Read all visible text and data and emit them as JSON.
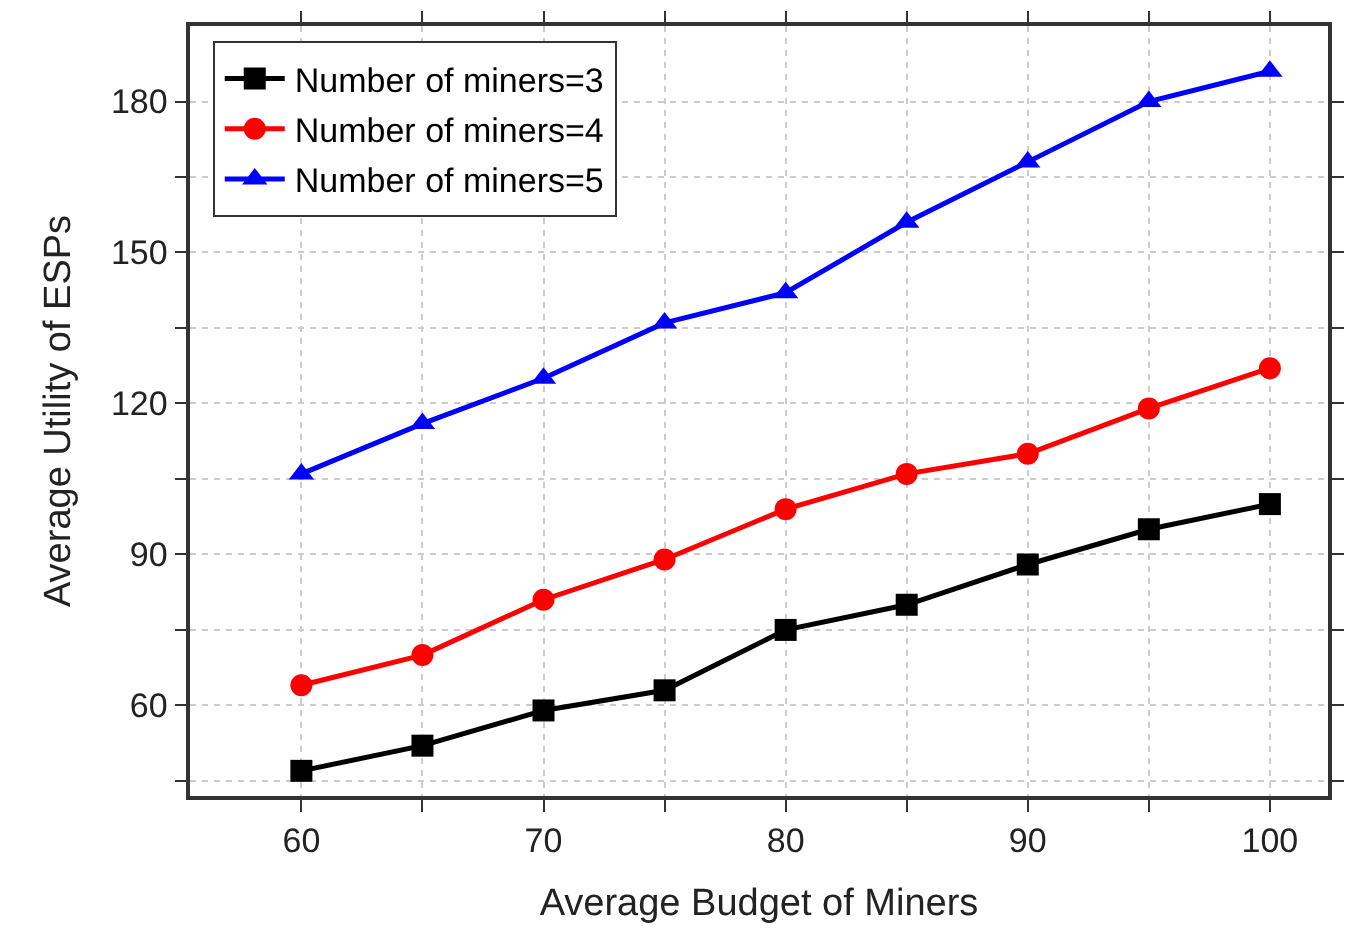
{
  "chart_data": {
    "type": "line",
    "xlabel": "Average Budget of Miners",
    "ylabel": "Average Utility of ESPs",
    "x": [
      60,
      65,
      70,
      75,
      80,
      85,
      90,
      95,
      100
    ],
    "series": [
      {
        "name": "Number of miners=3",
        "color": "#000000",
        "marker": "square",
        "values": [
          47,
          52,
          59,
          63,
          75,
          80,
          88,
          95,
          100
        ]
      },
      {
        "name": "Number of miners=4",
        "color": "#ff0000",
        "marker": "circle",
        "values": [
          64,
          70,
          81,
          89,
          99,
          106,
          110,
          119,
          127
        ]
      },
      {
        "name": "Number of miners=5",
        "color": "#0000ff",
        "marker": "triangle",
        "values": [
          106,
          116,
          125,
          136,
          142,
          156,
          168,
          180,
          186
        ]
      }
    ],
    "xlim": [
      55.4,
      102.4
    ],
    "ylim": [
      42,
      195
    ],
    "xticks": [
      60,
      {
        "value": 65,
        "label": null
      },
      70,
      {
        "value": 75,
        "label": null
      },
      80,
      {
        "value": 85,
        "label": null
      },
      90,
      {
        "value": 95,
        "label": null
      },
      100
    ],
    "yticks": [
      {
        "value": 45,
        "label": null
      },
      60,
      {
        "value": 75,
        "label": null
      },
      90,
      {
        "value": 105,
        "label": null
      },
      120,
      {
        "value": 135,
        "label": null
      },
      150,
      {
        "value": 165,
        "label": null
      },
      180
    ],
    "grid": true,
    "legend": "top left",
    "line_style": "solid"
  }
}
